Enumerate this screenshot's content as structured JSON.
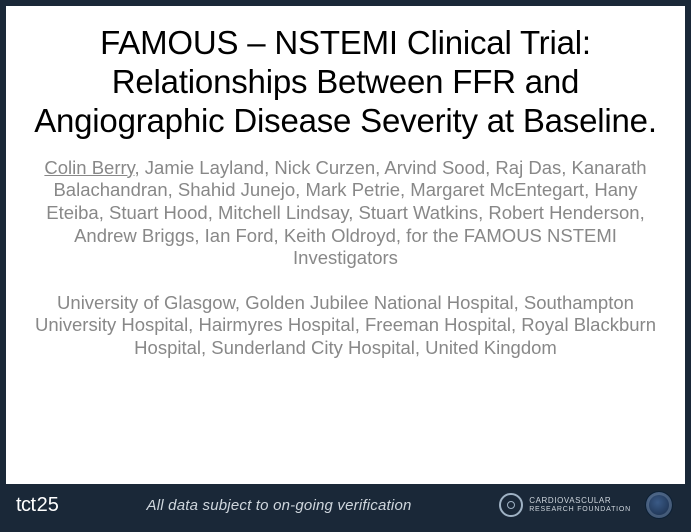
{
  "slide": {
    "background_color": "#1a2838",
    "inner_background_color": "#ffffff",
    "title": {
      "text": "FAMOUS – NSTEMI Clinical Trial: Relationships Between FFR and Angiographic Disease Severity at Baseline.",
      "color": "#000000",
      "fontsize": 33,
      "align": "center"
    },
    "authors": {
      "lead": "Colin Berry",
      "rest": ", Jamie Layland, Nick Curzen, Arvind Sood, Raj Das, Kanarath Balachandran, Shahid Junejo, Mark Petrie, Margaret McEntegart, Hany Eteiba, Stuart Hood, Mitchell Lindsay, Stuart Watkins, Robert Henderson, Andrew Briggs, Ian Ford, Keith Oldroyd, for the FAMOUS NSTEMI Investigators",
      "color": "#888888",
      "fontsize": 18.5
    },
    "affiliations": {
      "text": "University of Glasgow, Golden Jubilee National Hospital, Southampton University Hospital, Hairmyres Hospital, Freeman Hospital, Royal Blackburn Hospital, Sunderland City Hospital, United Kingdom",
      "color": "#888888",
      "fontsize": 18.5
    }
  },
  "footer": {
    "background_color": "#1a2838",
    "tct": {
      "text": "tct",
      "number": "25",
      "color": "#ffffff"
    },
    "disclaimer": {
      "text": "All data subject to on-going verification",
      "color": "#cfd6dd",
      "italic": true,
      "fontsize": 15
    },
    "crf": {
      "line1": "CARDIOVASCULAR",
      "line2": "RESEARCH FOUNDATION",
      "color": "#cfd6dd"
    }
  }
}
